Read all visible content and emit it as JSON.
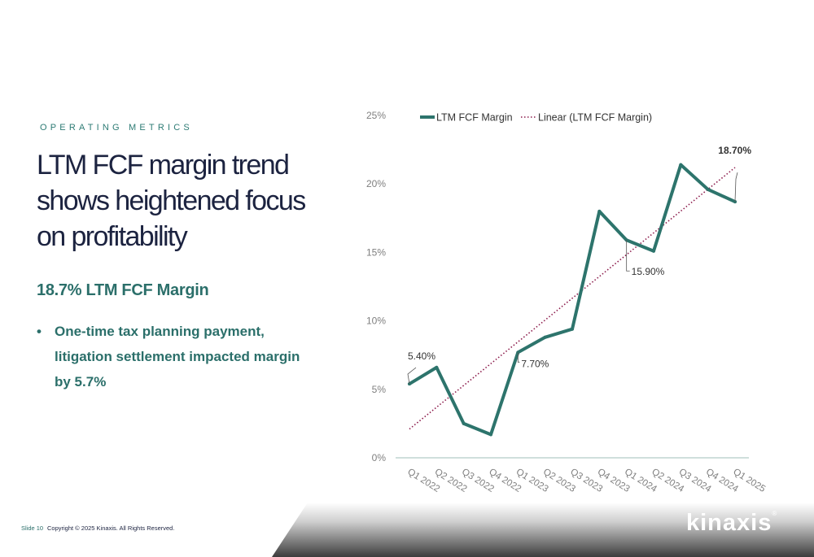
{
  "slide": {
    "section_label": "OPERATING METRICS",
    "headline": "LTM FCF margin trend shows heightened focus on profitability",
    "metric_label": "18.7% LTM FCF Margin",
    "bullets": [
      "One-time tax planning payment, litigation settlement impacted margin by 5.7%"
    ]
  },
  "footer": {
    "slide_number": "Slide 10",
    "copyright": "Copyright © 2025 Kinaxis. All Rights Reserved.",
    "logo_text": "kinaxis",
    "logo_mark": "®"
  },
  "colors": {
    "series": "#2d746c",
    "trend": "#8c1c4c",
    "axis": "#9fbfba",
    "tick_text": "#7f7f7f"
  },
  "chart_data": {
    "type": "line",
    "categories": [
      "Q1 2022",
      "Q2 2022",
      "Q3 2022",
      "Q4 2022",
      "Q1 2023",
      "Q2 2023",
      "Q3 2023",
      "Q4 2023",
      "Q1 2024",
      "Q2 2024",
      "Q3 2024",
      "Q4 2024",
      "Q1 2025"
    ],
    "series": [
      {
        "name": "LTM FCF Margin",
        "values": [
          5.4,
          6.6,
          2.5,
          1.7,
          7.7,
          8.8,
          9.4,
          18.0,
          15.9,
          15.1,
          21.4,
          19.6,
          18.7
        ]
      }
    ],
    "trendline": {
      "name": "Linear (LTM FCF Margin)",
      "start": 2.1,
      "end": 21.2
    },
    "ylim": [
      0,
      25
    ],
    "yticks": [
      0,
      5,
      10,
      15,
      20,
      25
    ],
    "ytick_labels": [
      "0%",
      "5%",
      "10%",
      "15%",
      "20%",
      "25%"
    ],
    "annotations": [
      {
        "index": 0,
        "text": "5.40%",
        "bold": false
      },
      {
        "index": 4,
        "text": "7.70%",
        "bold": false
      },
      {
        "index": 8,
        "text": "15.90%",
        "bold": false
      },
      {
        "index": 12,
        "text": "18.70%",
        "bold": true
      }
    ],
    "legend": "top",
    "grid": false
  }
}
